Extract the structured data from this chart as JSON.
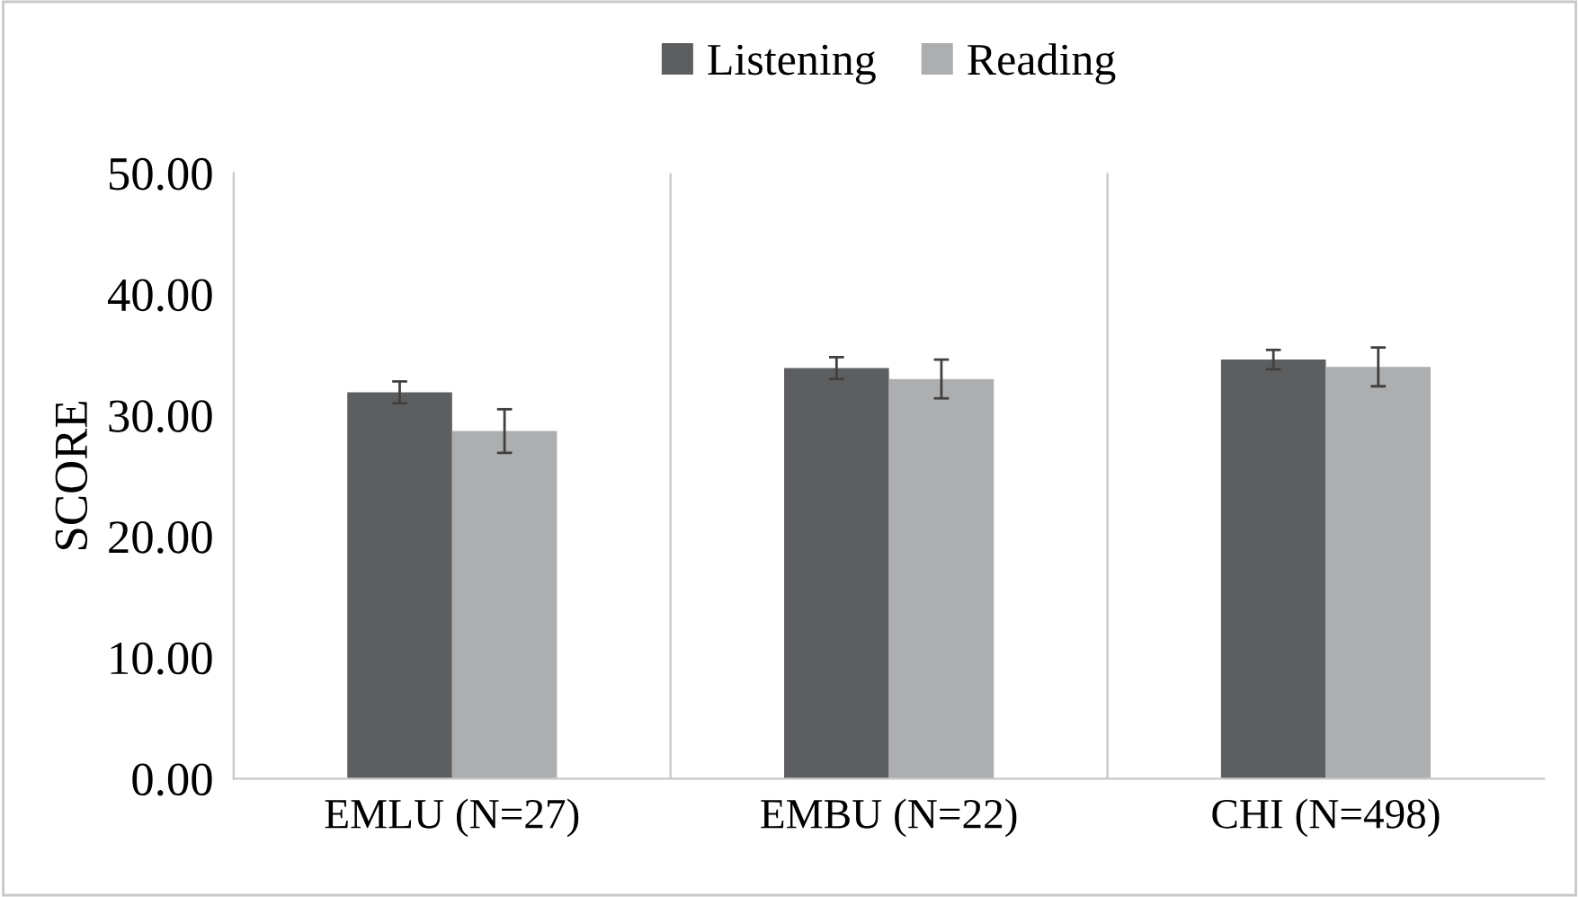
{
  "chart_data": {
    "type": "bar",
    "ylabel": "SCORE",
    "categories": [
      "EMLU (N=27)",
      "EMBU (N=22)",
      "CHI (N=498)"
    ],
    "series": [
      {
        "name": "Listening",
        "color": "#5d5e60",
        "values": [
          31.9,
          33.9,
          34.6
        ],
        "errors": [
          0.9,
          0.9,
          0.8
        ]
      },
      {
        "name": "Reading",
        "color": "#adaeb0",
        "values": [
          28.7,
          33.0,
          34.0
        ],
        "errors": [
          1.8,
          1.6,
          1.6
        ]
      }
    ],
    "ylim": [
      0,
      50
    ],
    "yticks": [
      {
        "value": 0,
        "label": "0.00"
      },
      {
        "value": 10,
        "label": "10.00"
      },
      {
        "value": 20,
        "label": "20.00"
      },
      {
        "value": 30,
        "label": "30.00"
      },
      {
        "value": 40,
        "label": "40.00"
      },
      {
        "value": 50,
        "label": "50.00"
      }
    ],
    "grid": "x",
    "legend": "top"
  }
}
